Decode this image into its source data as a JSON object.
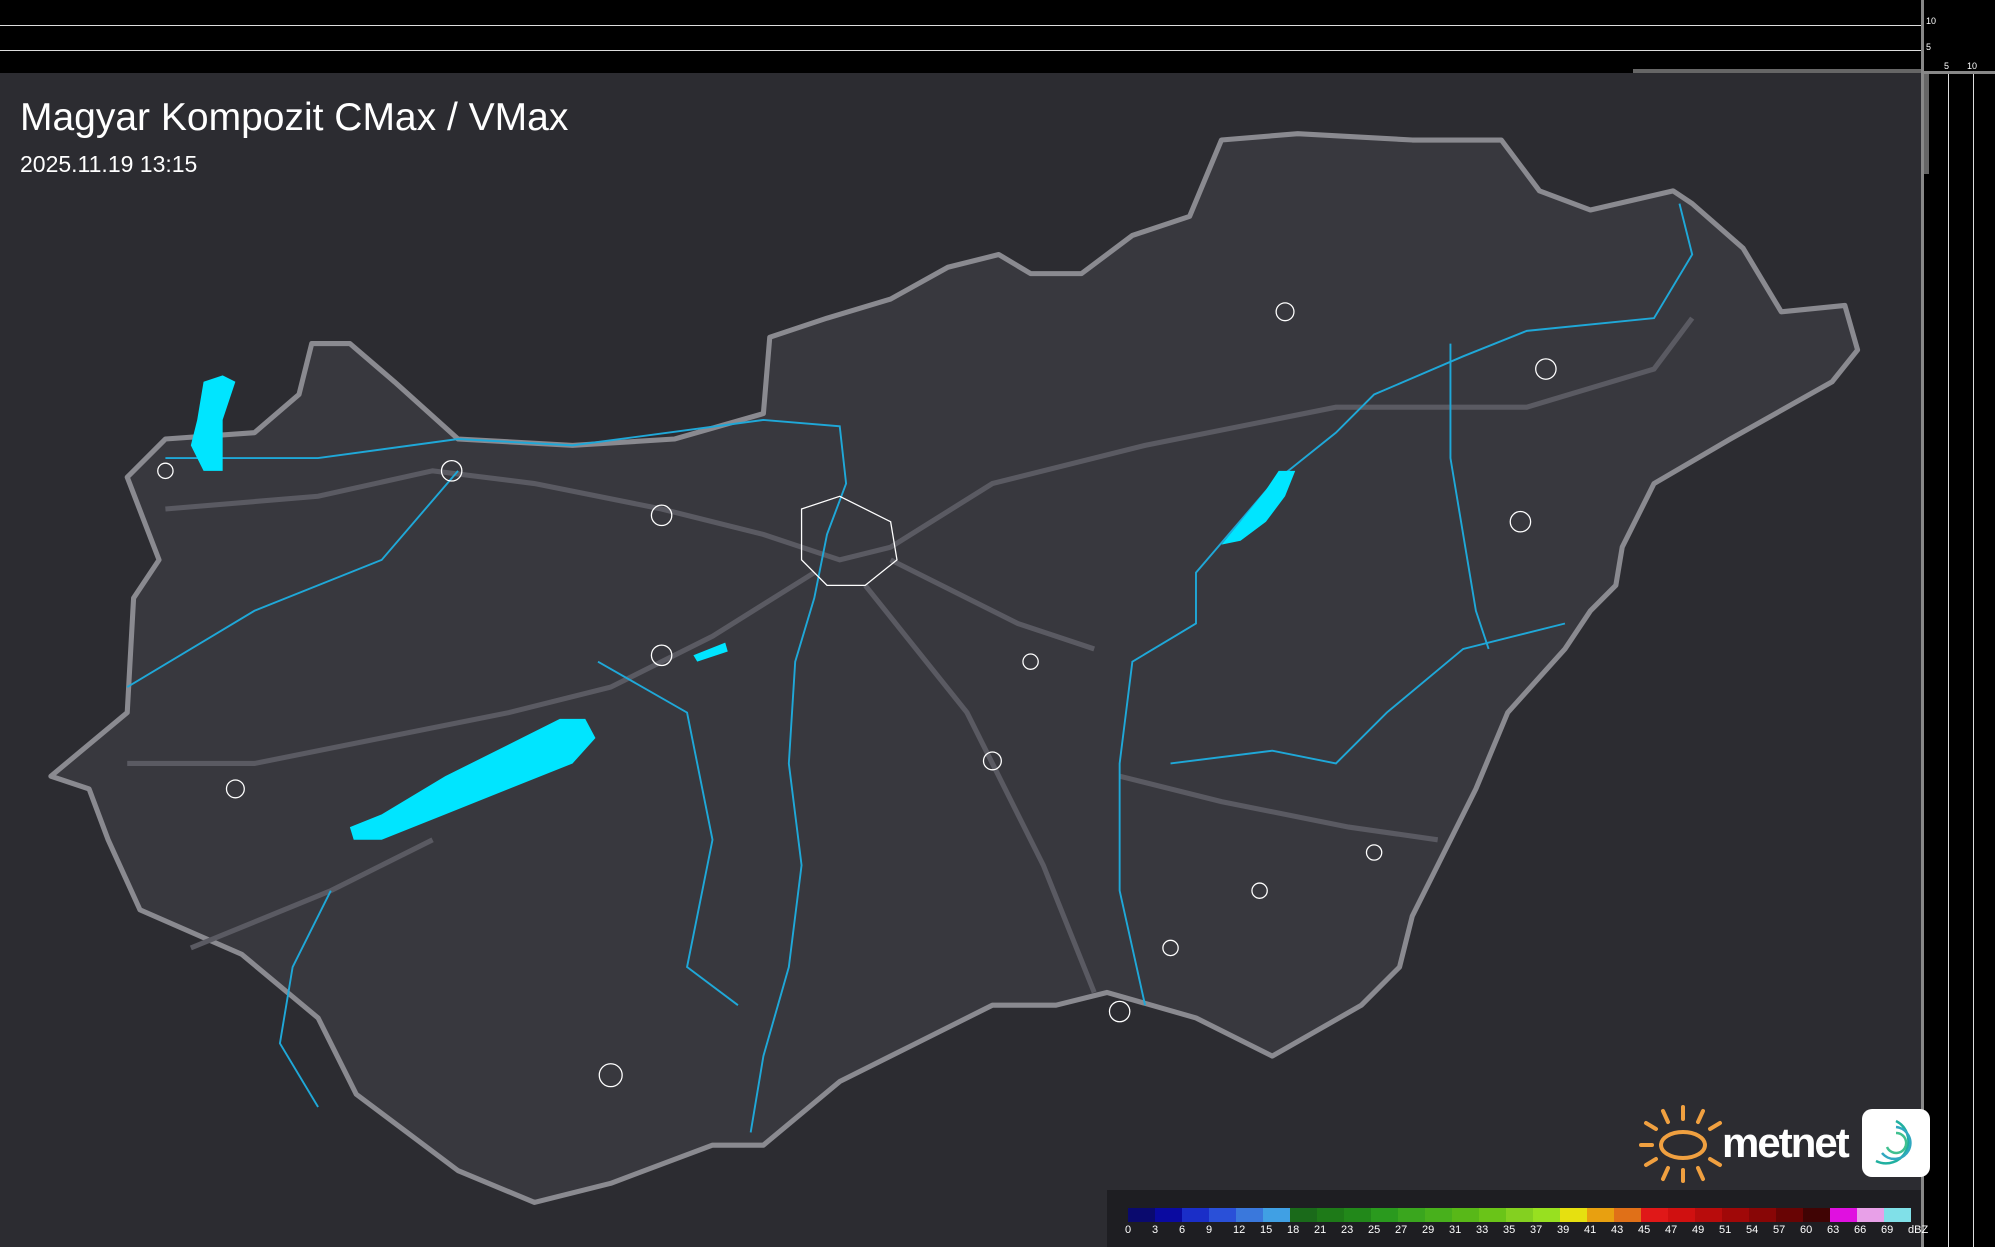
{
  "header": {
    "title": "Magyar Kompozit CMax / VMax",
    "timestamp": "2025.11.19 13:15"
  },
  "side_profile": {
    "top_scale_labels": [
      "10",
      "5"
    ],
    "right_scale_labels": [
      "5",
      "10"
    ]
  },
  "legend": {
    "unit": "dBZ",
    "labels": [
      "0",
      "3",
      "6",
      "9",
      "12",
      "15",
      "18",
      "21",
      "23",
      "25",
      "27",
      "29",
      "31",
      "33",
      "35",
      "37",
      "39",
      "41",
      "43",
      "45",
      "47",
      "49",
      "51",
      "54",
      "57",
      "60",
      "63",
      "66",
      "69"
    ],
    "colors": [
      "#0a0a6e",
      "#0a0aa0",
      "#1a2ec8",
      "#2a50d8",
      "#3a78dc",
      "#40a0e4",
      "#1a6a1a",
      "#1e7a18",
      "#22881a",
      "#2a9a1e",
      "#3aa61e",
      "#48b01c",
      "#58b818",
      "#6ac418",
      "#84d020",
      "#98e020",
      "#e6e010",
      "#e8a010",
      "#e07018",
      "#e01818",
      "#d01010",
      "#b80c0c",
      "#a00808",
      "#880606",
      "#680404",
      "#400404",
      "#e010e0",
      "#e8a0e8",
      "#80e0e8"
    ]
  },
  "logo": {
    "brand": "metnet",
    "sun_color": "#f0a040"
  },
  "map": {
    "lake_color": "#00e5ff",
    "river_color": "#1fa8d8",
    "border_color": "#8a8a90"
  }
}
